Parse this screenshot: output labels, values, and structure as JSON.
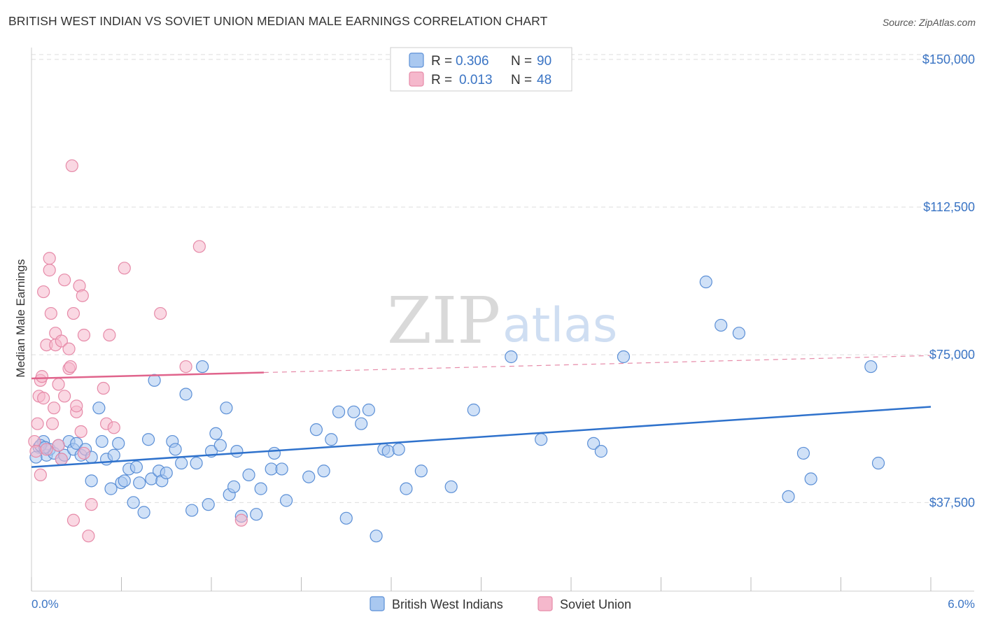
{
  "title": "BRITISH WEST INDIAN VS SOVIET UNION MEDIAN MALE EARNINGS CORRELATION CHART",
  "source": "Source: ZipAtlas.com",
  "watermark": {
    "part1": "ZIP",
    "part2": "atlas"
  },
  "colors": {
    "blue_fill": "#a9c8f0",
    "blue_stroke": "#5b8fd6",
    "blue_line": "#2f72cc",
    "pink_fill": "#f5b8cc",
    "pink_stroke": "#e68aa8",
    "pink_line": "#e0648c",
    "tick_text": "#3a74c4",
    "grid": "#dddddd"
  },
  "legend": {
    "rows": [
      {
        "r_label": "R =",
        "r_value": "0.306",
        "n_label": "N =",
        "n_value": "90",
        "series": "blue"
      },
      {
        "r_label": "R =",
        "r_value": "0.013",
        "n_label": "N =",
        "n_value": "48",
        "series": "pink"
      }
    ]
  },
  "chart_data": {
    "type": "scatter",
    "title": "BRITISH WEST INDIAN VS SOVIET UNION MEDIAN MALE EARNINGS CORRELATION CHART",
    "xlabel": "",
    "ylabel": "Median Male Earnings",
    "xlim": [
      0.0,
      6.0
    ],
    "ylim": [
      15000,
      153000
    ],
    "x_tick_labels": [
      "0.0%",
      "6.0%"
    ],
    "y_ticks": [
      37500,
      75000,
      112500,
      150000
    ],
    "y_tick_labels": [
      "$37,500",
      "$75,000",
      "$112,500",
      "$150,000"
    ],
    "grid": true,
    "legend_placement": "top-center",
    "series": [
      {
        "name": "British West Indians",
        "color": "#a9c8f0",
        "trend": {
          "x": [
            0.0,
            6.0
          ],
          "y": [
            46500,
            61800
          ],
          "style": "solid"
        },
        "points": [
          [
            0.05,
            51500
          ],
          [
            0.08,
            53000
          ],
          [
            0.1,
            49500
          ],
          [
            0.12,
            51000
          ],
          [
            0.15,
            50000
          ],
          [
            0.18,
            52000
          ],
          [
            0.2,
            48500
          ],
          [
            0.22,
            49500
          ],
          [
            0.25,
            53000
          ],
          [
            0.28,
            51000
          ],
          [
            0.3,
            52500
          ],
          [
            0.33,
            49500
          ],
          [
            0.36,
            51000
          ],
          [
            0.4,
            49000
          ],
          [
            0.4,
            43000
          ],
          [
            0.45,
            61500
          ],
          [
            0.47,
            53000
          ],
          [
            0.5,
            48500
          ],
          [
            0.53,
            41000
          ],
          [
            0.55,
            49500
          ],
          [
            0.58,
            52500
          ],
          [
            0.6,
            42500
          ],
          [
            0.62,
            43000
          ],
          [
            0.65,
            46000
          ],
          [
            0.68,
            37500
          ],
          [
            0.7,
            46500
          ],
          [
            0.72,
            42500
          ],
          [
            0.75,
            35000
          ],
          [
            0.78,
            53500
          ],
          [
            0.8,
            43500
          ],
          [
            0.82,
            68500
          ],
          [
            0.85,
            45500
          ],
          [
            0.87,
            43000
          ],
          [
            0.9,
            45000
          ],
          [
            0.94,
            53000
          ],
          [
            0.96,
            51000
          ],
          [
            1.0,
            47500
          ],
          [
            1.03,
            65000
          ],
          [
            1.07,
            35500
          ],
          [
            1.1,
            47500
          ],
          [
            1.14,
            72000
          ],
          [
            1.18,
            37000
          ],
          [
            1.2,
            50500
          ],
          [
            1.23,
            55000
          ],
          [
            1.26,
            52000
          ],
          [
            1.3,
            61500
          ],
          [
            1.32,
            39500
          ],
          [
            1.35,
            41500
          ],
          [
            1.37,
            50500
          ],
          [
            1.4,
            34000
          ],
          [
            1.45,
            44500
          ],
          [
            1.5,
            34500
          ],
          [
            1.53,
            41000
          ],
          [
            1.6,
            46000
          ],
          [
            1.62,
            50000
          ],
          [
            1.67,
            46000
          ],
          [
            1.7,
            38000
          ],
          [
            1.85,
            44000
          ],
          [
            1.9,
            56000
          ],
          [
            1.95,
            45500
          ],
          [
            2.0,
            53500
          ],
          [
            2.05,
            60500
          ],
          [
            2.1,
            33500
          ],
          [
            2.15,
            60500
          ],
          [
            2.2,
            57500
          ],
          [
            2.25,
            61000
          ],
          [
            2.3,
            29000
          ],
          [
            2.35,
            51000
          ],
          [
            2.38,
            50500
          ],
          [
            2.45,
            51000
          ],
          [
            2.5,
            41000
          ],
          [
            2.6,
            45500
          ],
          [
            2.8,
            41500
          ],
          [
            2.95,
            61000
          ],
          [
            3.2,
            74500
          ],
          [
            3.4,
            53500
          ],
          [
            3.75,
            52500
          ],
          [
            3.8,
            50500
          ],
          [
            3.95,
            74500
          ],
          [
            4.5,
            93500
          ],
          [
            4.6,
            82500
          ],
          [
            4.72,
            80500
          ],
          [
            5.05,
            39000
          ],
          [
            5.15,
            50000
          ],
          [
            5.2,
            43500
          ],
          [
            5.6,
            72000
          ],
          [
            5.65,
            47500
          ],
          [
            0.03,
            49000
          ],
          [
            0.06,
            52000
          ],
          [
            0.09,
            51500
          ]
        ]
      },
      {
        "name": "Soviet Union",
        "color": "#f5b8cc",
        "trend": {
          "x": [
            0.0,
            1.55
          ],
          "y": [
            69000,
            70500
          ],
          "style": "solid"
        },
        "trend_extension": {
          "x": [
            1.55,
            6.0
          ],
          "y": [
            70500,
            74800
          ],
          "style": "dashed"
        },
        "points": [
          [
            0.02,
            53000
          ],
          [
            0.03,
            50500
          ],
          [
            0.04,
            57500
          ],
          [
            0.05,
            64500
          ],
          [
            0.06,
            68500
          ],
          [
            0.07,
            69500
          ],
          [
            0.08,
            64000
          ],
          [
            0.08,
            91000
          ],
          [
            0.1,
            77500
          ],
          [
            0.1,
            51000
          ],
          [
            0.12,
            96500
          ],
          [
            0.12,
            99500
          ],
          [
            0.13,
            85500
          ],
          [
            0.14,
            57500
          ],
          [
            0.15,
            61500
          ],
          [
            0.16,
            80500
          ],
          [
            0.16,
            77500
          ],
          [
            0.18,
            67500
          ],
          [
            0.18,
            52000
          ],
          [
            0.2,
            48500
          ],
          [
            0.2,
            78500
          ],
          [
            0.22,
            94000
          ],
          [
            0.22,
            64500
          ],
          [
            0.25,
            76500
          ],
          [
            0.25,
            71500
          ],
          [
            0.26,
            72000
          ],
          [
            0.27,
            123000
          ],
          [
            0.28,
            85500
          ],
          [
            0.28,
            33000
          ],
          [
            0.3,
            60500
          ],
          [
            0.3,
            62000
          ],
          [
            0.32,
            92500
          ],
          [
            0.33,
            55500
          ],
          [
            0.34,
            90000
          ],
          [
            0.35,
            80000
          ],
          [
            0.38,
            29000
          ],
          [
            0.4,
            37000
          ],
          [
            0.48,
            66500
          ],
          [
            0.5,
            57500
          ],
          [
            0.52,
            80000
          ],
          [
            0.55,
            56500
          ],
          [
            0.62,
            97000
          ],
          [
            0.86,
            85500
          ],
          [
            1.03,
            72000
          ],
          [
            1.12,
            102500
          ],
          [
            1.4,
            33000
          ],
          [
            0.06,
            44500
          ],
          [
            0.35,
            50000
          ]
        ]
      }
    ]
  }
}
